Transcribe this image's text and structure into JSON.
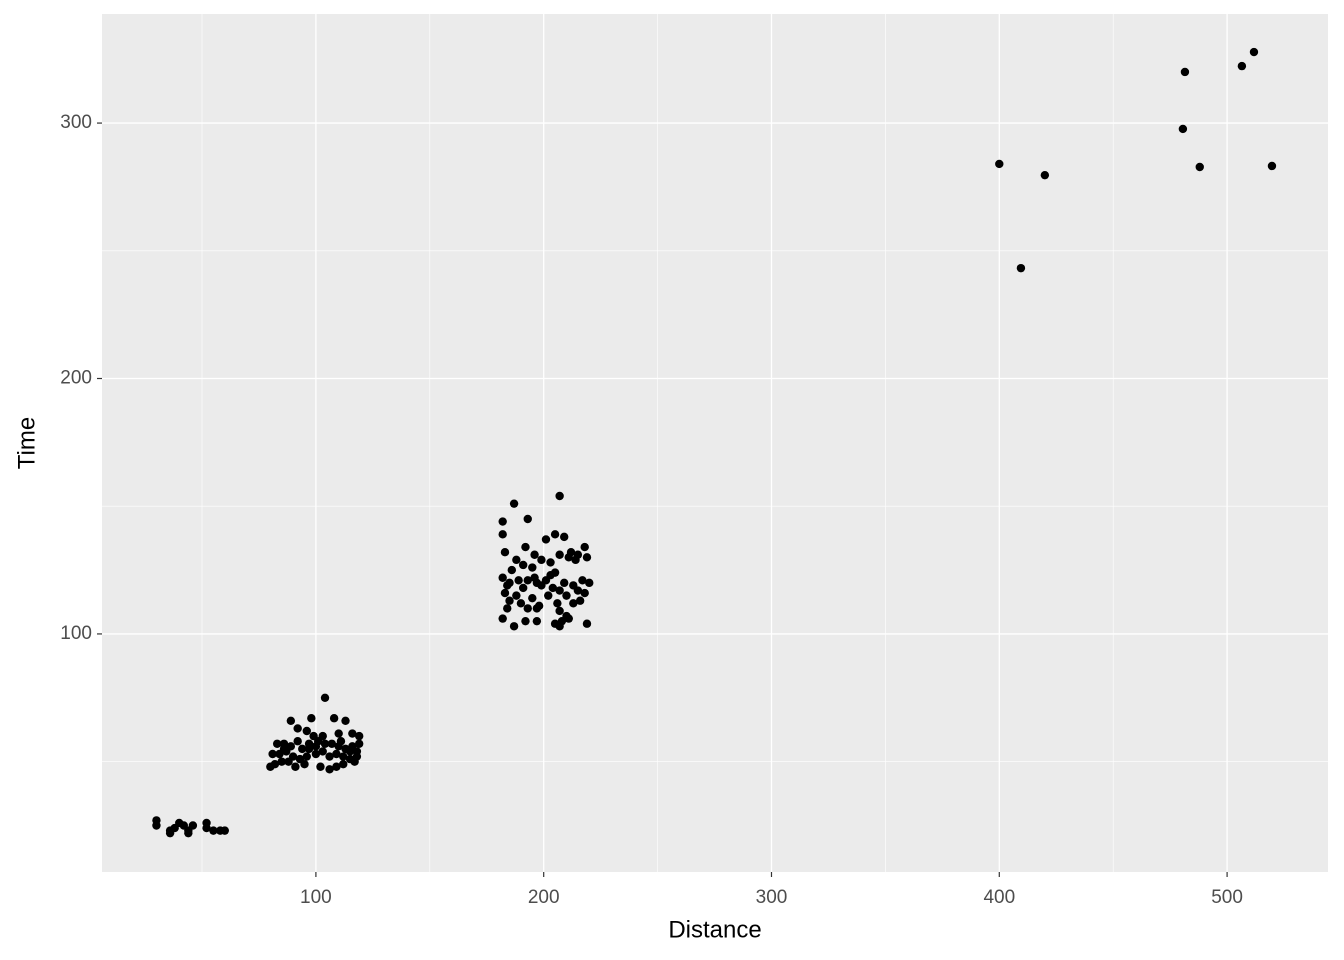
{
  "chart_data": {
    "type": "scatter",
    "x_label": "Distance",
    "y_label": "Time",
    "xlim": [
      6.1,
      544.3
    ],
    "ylim": [
      6.8,
      342.7
    ],
    "xticks": [
      100,
      200,
      300,
      400,
      500
    ],
    "yticks": [
      100,
      200,
      300
    ],
    "x_minor_grid": [
      50,
      150,
      250,
      350,
      450
    ],
    "y_minor_grid": [
      50,
      150,
      250
    ],
    "grid": true,
    "color": "#000000",
    "x": [
      30,
      30,
      36,
      38,
      40,
      42,
      44,
      46,
      52,
      52,
      55,
      58,
      60,
      36,
      44,
      104,
      89,
      108,
      98,
      113,
      92,
      96,
      99,
      103,
      110,
      116,
      119,
      83,
      86,
      89,
      92,
      94,
      97,
      100,
      104,
      107,
      110,
      113,
      116,
      119,
      81,
      84,
      87,
      90,
      93,
      96,
      100,
      103,
      106,
      109,
      112,
      115,
      118,
      82,
      85,
      88,
      91,
      95,
      102,
      106,
      109,
      112,
      117,
      80,
      97,
      101,
      111,
      115,
      118,
      86,
      207,
      187,
      193,
      182,
      182,
      201,
      205,
      209,
      196,
      192,
      183,
      212,
      215,
      218,
      211,
      188,
      191,
      199,
      203,
      207,
      214,
      219,
      186,
      195,
      205,
      182,
      189,
      193,
      197,
      201,
      209,
      213,
      217,
      220,
      184,
      191,
      199,
      204,
      207,
      215,
      183,
      188,
      195,
      202,
      210,
      218,
      185,
      190,
      198,
      206,
      213,
      184,
      193,
      197,
      207,
      182,
      192,
      197,
      205,
      208,
      211,
      219,
      187,
      207,
      210,
      216,
      196,
      203,
      185,
      400,
      409.5,
      420,
      480.6,
      481.5,
      488,
      506.5,
      511.8,
      519.7
    ],
    "y": [
      27,
      25,
      23,
      24,
      26,
      25,
      23,
      25,
      26,
      24,
      23,
      23,
      23,
      22,
      22,
      75,
      66,
      67,
      67,
      66,
      63,
      62,
      60,
      60,
      61,
      61,
      60,
      57,
      57,
      56,
      58,
      55,
      55,
      56,
      57,
      57,
      56,
      55,
      56,
      57,
      53,
      53,
      54,
      52,
      51,
      52,
      53,
      54,
      52,
      53,
      52,
      51,
      52,
      49,
      50,
      50,
      48,
      49,
      48,
      47,
      48,
      49,
      50,
      48,
      57,
      58,
      58,
      54,
      54,
      55,
      154,
      151,
      145,
      144,
      139,
      137,
      139,
      138,
      131,
      134,
      132,
      132,
      131,
      134,
      130,
      129,
      127,
      129,
      128,
      131,
      129,
      130,
      125,
      126,
      124,
      122,
      121,
      121,
      120,
      121,
      120,
      119,
      121,
      120,
      119,
      118,
      119,
      118,
      117,
      117,
      116,
      115,
      114,
      115,
      115,
      116,
      113,
      112,
      111,
      112,
      112,
      110,
      110,
      110,
      109,
      106,
      105,
      105,
      104,
      105,
      106,
      104,
      103,
      103,
      107,
      113,
      122,
      123,
      120,
      284,
      243.2,
      279.6,
      297.7,
      320,
      282.8,
      322.3,
      327.8,
      283.2
    ]
  }
}
